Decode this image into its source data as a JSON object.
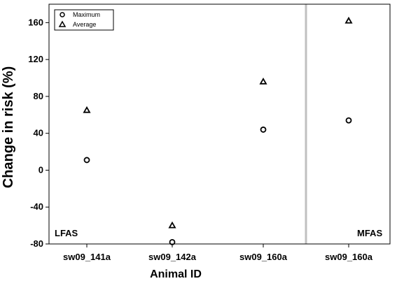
{
  "chart_data": {
    "type": "scatter",
    "xlabel": "Animal ID",
    "ylabel": "Change in risk (%)",
    "categories": [
      "sw09_141a",
      "sw09_142a",
      "sw09_160a",
      "sw09_160a"
    ],
    "ylim": [
      -80,
      180
    ],
    "yticks": [
      "160",
      "120",
      "80",
      "40",
      "0",
      "-40",
      "-80"
    ],
    "yticks_values": [
      160,
      120,
      80,
      40,
      0,
      -40,
      -80
    ],
    "series": [
      {
        "name": "Maximum",
        "marker": "circle",
        "values": [
          11,
          -78,
          44,
          54
        ]
      },
      {
        "name": "Average",
        "marker": "triangle",
        "values": [
          65,
          -60,
          96,
          162
        ]
      }
    ],
    "regions": [
      "LFAS",
      "MFAS"
    ],
    "legend_position": "top-left",
    "grid": false,
    "divider_color": "#c0c0c0"
  }
}
